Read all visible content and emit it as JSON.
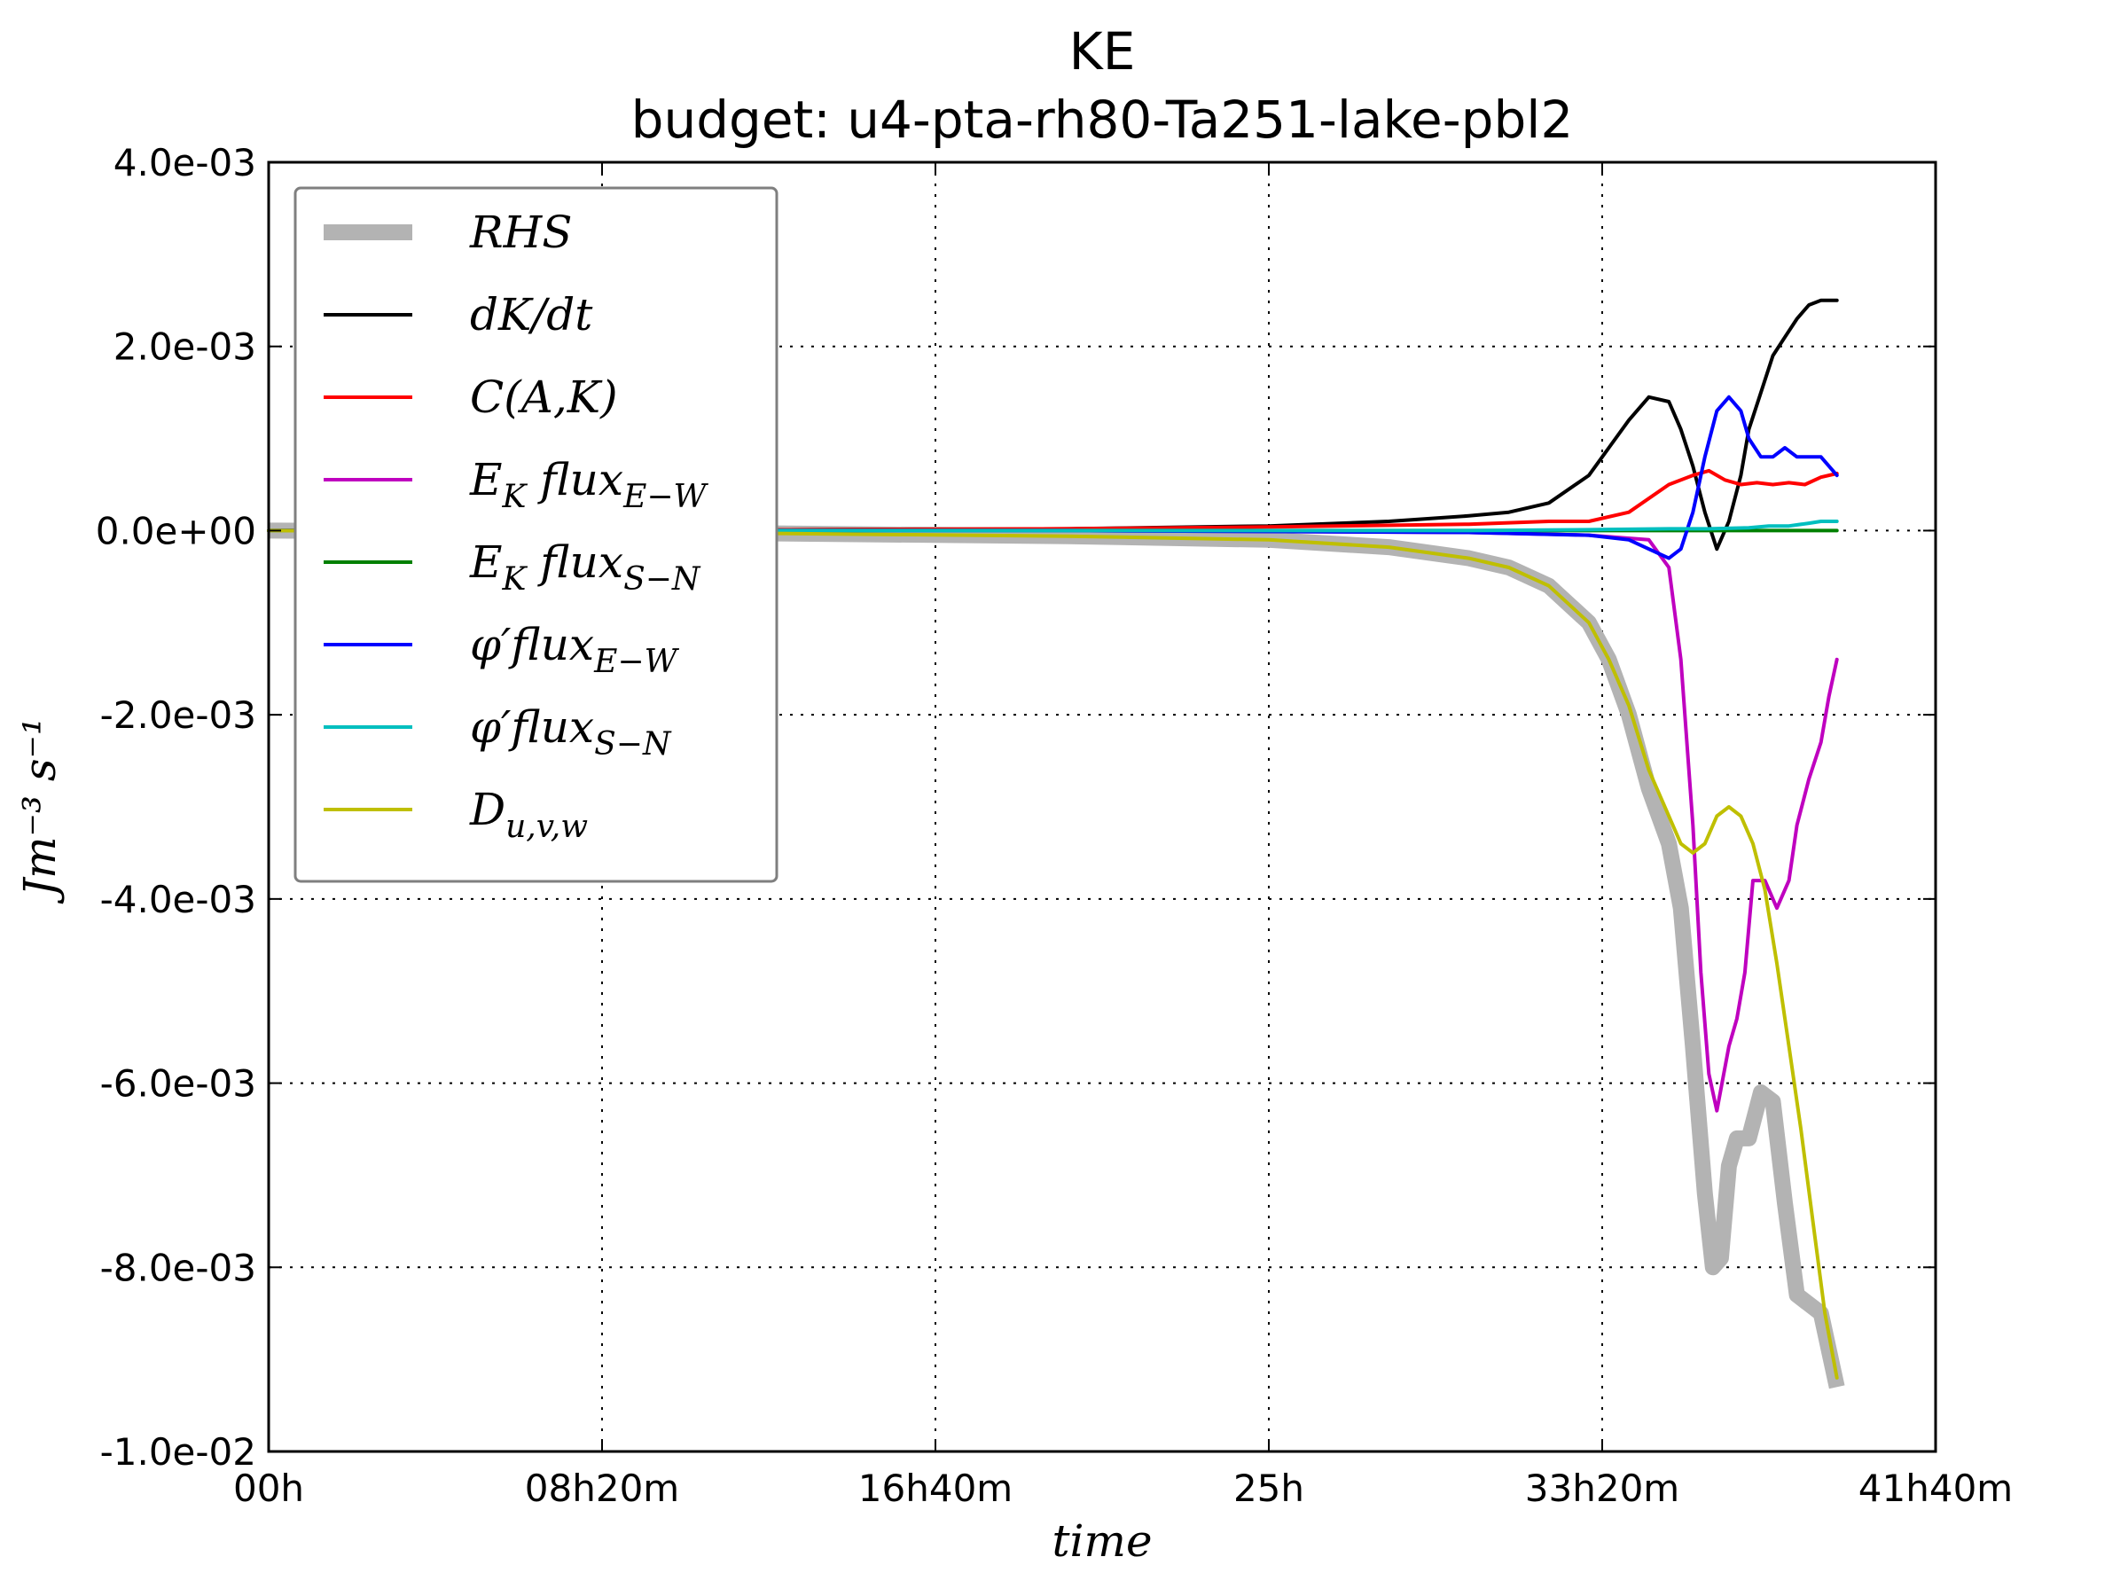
{
  "chart_data": {
    "type": "line",
    "title": "KE",
    "subtitle": "budget: u4-pta-rh80-Ta251-lake-pbl2",
    "xlabel": "time",
    "ylabel": "Jm⁻³ s⁻¹",
    "xlim": [
      0,
      41.6667
    ],
    "ylim": [
      -0.01,
      0.004
    ],
    "x_ticks": [
      {
        "value": 0,
        "label": "00h"
      },
      {
        "value": 8.3333,
        "label": "08h20m"
      },
      {
        "value": 16.6667,
        "label": "16h40m"
      },
      {
        "value": 25,
        "label": "25h"
      },
      {
        "value": 33.3333,
        "label": "33h20m"
      },
      {
        "value": 41.6667,
        "label": "41h40m"
      }
    ],
    "y_ticks": [
      {
        "value": 0.004,
        "label": "4.0e-03"
      },
      {
        "value": 0.002,
        "label": "2.0e-03"
      },
      {
        "value": 0.0,
        "label": "0.0e+00"
      },
      {
        "value": -0.002,
        "label": "-2.0e-03"
      },
      {
        "value": -0.004,
        "label": "-4.0e-03"
      },
      {
        "value": -0.006,
        "label": "-6.0e-03"
      },
      {
        "value": -0.008,
        "label": "-8.0e-03"
      },
      {
        "value": -0.01,
        "label": "-1.0e-02"
      }
    ],
    "grid": true,
    "legend_position": "top-left",
    "series": [
      {
        "name": "RHS",
        "label": "RHS",
        "sub": "",
        "color": "#b3b3b3",
        "width": 18,
        "x": [
          0,
          5,
          10,
          15,
          20,
          25,
          28,
          30,
          31,
          32,
          33,
          33.5,
          34,
          34.5,
          35,
          35.3,
          35.6,
          35.9,
          36.1,
          36.3,
          36.5,
          36.7,
          37.0,
          37.3,
          37.6,
          37.9,
          38.2,
          38.5,
          38.8,
          39.0,
          39.2
        ],
        "y": [
          0,
          -1e-05,
          -2e-05,
          -4e-05,
          -6e-05,
          -0.0001,
          -0.00018,
          -0.0003,
          -0.0004,
          -0.0006,
          -0.001,
          -0.0014,
          -0.002,
          -0.0028,
          -0.0034,
          -0.0041,
          -0.0056,
          -0.0072,
          -0.008,
          -0.0079,
          -0.0069,
          -0.0066,
          -0.0066,
          -0.0061,
          -0.0062,
          -0.0073,
          -0.0083,
          -0.0084,
          -0.0085,
          -0.0089,
          -0.0093
        ]
      },
      {
        "name": "dK/dt",
        "label": "dK/dt",
        "sub": "",
        "color": "#000000",
        "width": 4,
        "x": [
          0,
          10,
          20,
          25,
          28,
          30,
          31,
          32,
          33,
          33.5,
          34,
          34.5,
          35,
          35.3,
          35.6,
          35.9,
          36.2,
          36.5,
          36.8,
          37.0,
          37.3,
          37.6,
          37.9,
          38.2,
          38.5,
          38.8,
          39.0,
          39.2
        ],
        "y": [
          0,
          5e-06,
          2e-05,
          5e-05,
          0.0001,
          0.00016,
          0.0002,
          0.0003,
          0.0006,
          0.0009,
          0.0012,
          0.00145,
          0.0014,
          0.0011,
          0.0007,
          0.0002,
          -0.0002,
          0.0001,
          0.0006,
          0.0011,
          0.0015,
          0.0019,
          0.0021,
          0.0023,
          0.00245,
          0.0025,
          0.0025,
          0.0025
        ]
      },
      {
        "name": "C(A,K)",
        "label": "C(A,K)",
        "sub": "",
        "color": "#ff0000",
        "width": 4,
        "x": [
          0,
          10,
          20,
          25,
          30,
          32,
          33,
          34,
          35,
          35.6,
          36,
          36.4,
          36.8,
          37.2,
          37.6,
          38.0,
          38.4,
          38.8,
          39.2
        ],
        "y": [
          0,
          5e-06,
          2e-05,
          4e-05,
          7e-05,
          0.0001,
          0.0001,
          0.0002,
          0.0005,
          0.0006,
          0.00065,
          0.00055,
          0.0005,
          0.00052,
          0.0005,
          0.00052,
          0.0005,
          0.00058,
          0.00062
        ]
      },
      {
        "name": "E_K flux E-W",
        "label": "E",
        "sub": "K",
        "label2": " flux",
        "sub2": "E−W",
        "color": "#bf00bf",
        "width": 4,
        "x": [
          0,
          20,
          30,
          33,
          34.5,
          35,
          35.3,
          35.6,
          35.8,
          36.0,
          36.2,
          36.5,
          36.7,
          36.9,
          37.1,
          37.4,
          37.7,
          38.0,
          38.2,
          38.5,
          38.8,
          39.0,
          39.2
        ],
        "y": [
          0,
          0,
          -2e-05,
          -5e-05,
          -0.0001,
          -0.0004,
          -0.0014,
          -0.0032,
          -0.0048,
          -0.0059,
          -0.0063,
          -0.0056,
          -0.0053,
          -0.0048,
          -0.0038,
          -0.0038,
          -0.0041,
          -0.0038,
          -0.0032,
          -0.0027,
          -0.0023,
          -0.0018,
          -0.0014
        ]
      },
      {
        "name": "E_K flux S-N",
        "label": "E",
        "sub": "K",
        "label2": " flux",
        "sub2": "S−N",
        "color": "#008000",
        "width": 4,
        "x": [
          0,
          10,
          20,
          30,
          35,
          39.2
        ],
        "y": [
          0,
          0,
          0,
          0,
          0,
          0
        ]
      },
      {
        "name": "phi' flux E-W",
        "label": "φ′",
        "sub": "",
        "label2": "flux",
        "sub2": "E−W",
        "color": "#0000ff",
        "width": 4,
        "x": [
          0,
          20,
          30,
          32,
          33,
          34,
          34.5,
          35,
          35.3,
          35.6,
          35.9,
          36.2,
          36.5,
          36.8,
          37.0,
          37.3,
          37.6,
          37.9,
          38.2,
          38.5,
          38.8,
          39.0,
          39.2
        ],
        "y": [
          0,
          0,
          -2e-05,
          -4e-05,
          -5e-05,
          -0.0001,
          -0.0002,
          -0.0003,
          -0.0002,
          0.0002,
          0.0008,
          0.0013,
          0.00145,
          0.0013,
          0.001,
          0.0008,
          0.0008,
          0.0009,
          0.0008,
          0.0008,
          0.0008,
          0.0007,
          0.0006
        ]
      },
      {
        "name": "phi' flux S-N",
        "label": "φ′",
        "sub": "",
        "label2": "flux",
        "sub2": "S−N",
        "color": "#00bfbf",
        "width": 4,
        "x": [
          0,
          20,
          30,
          33,
          35,
          36,
          37,
          37.5,
          38.0,
          38.5,
          38.8,
          39.2
        ],
        "y": [
          0,
          0,
          0,
          1e-05,
          2e-05,
          2e-05,
          3e-05,
          5e-05,
          5e-05,
          8e-05,
          0.0001,
          0.0001
        ]
      },
      {
        "name": "D_u,v,w",
        "label": "D",
        "sub": "u,v,w",
        "color": "#bfbf00",
        "width": 4,
        "x": [
          0,
          5,
          10,
          15,
          20,
          25,
          28,
          30,
          31,
          32,
          33,
          33.5,
          34,
          34.5,
          35,
          35.3,
          35.6,
          35.9,
          36.2,
          36.5,
          36.8,
          37.1,
          37.4,
          37.7,
          38.0,
          38.3,
          38.6,
          38.9,
          39.2
        ],
        "y": [
          0,
          -1e-05,
          -2e-05,
          -4e-05,
          -6e-05,
          -0.0001,
          -0.00018,
          -0.0003,
          -0.0004,
          -0.0006,
          -0.001,
          -0.0014,
          -0.0019,
          -0.0026,
          -0.0031,
          -0.0034,
          -0.0035,
          -0.0034,
          -0.0031,
          -0.003,
          -0.0031,
          -0.0034,
          -0.0039,
          -0.0047,
          -0.0056,
          -0.0065,
          -0.0075,
          -0.0085,
          -0.0092
        ]
      }
    ]
  }
}
